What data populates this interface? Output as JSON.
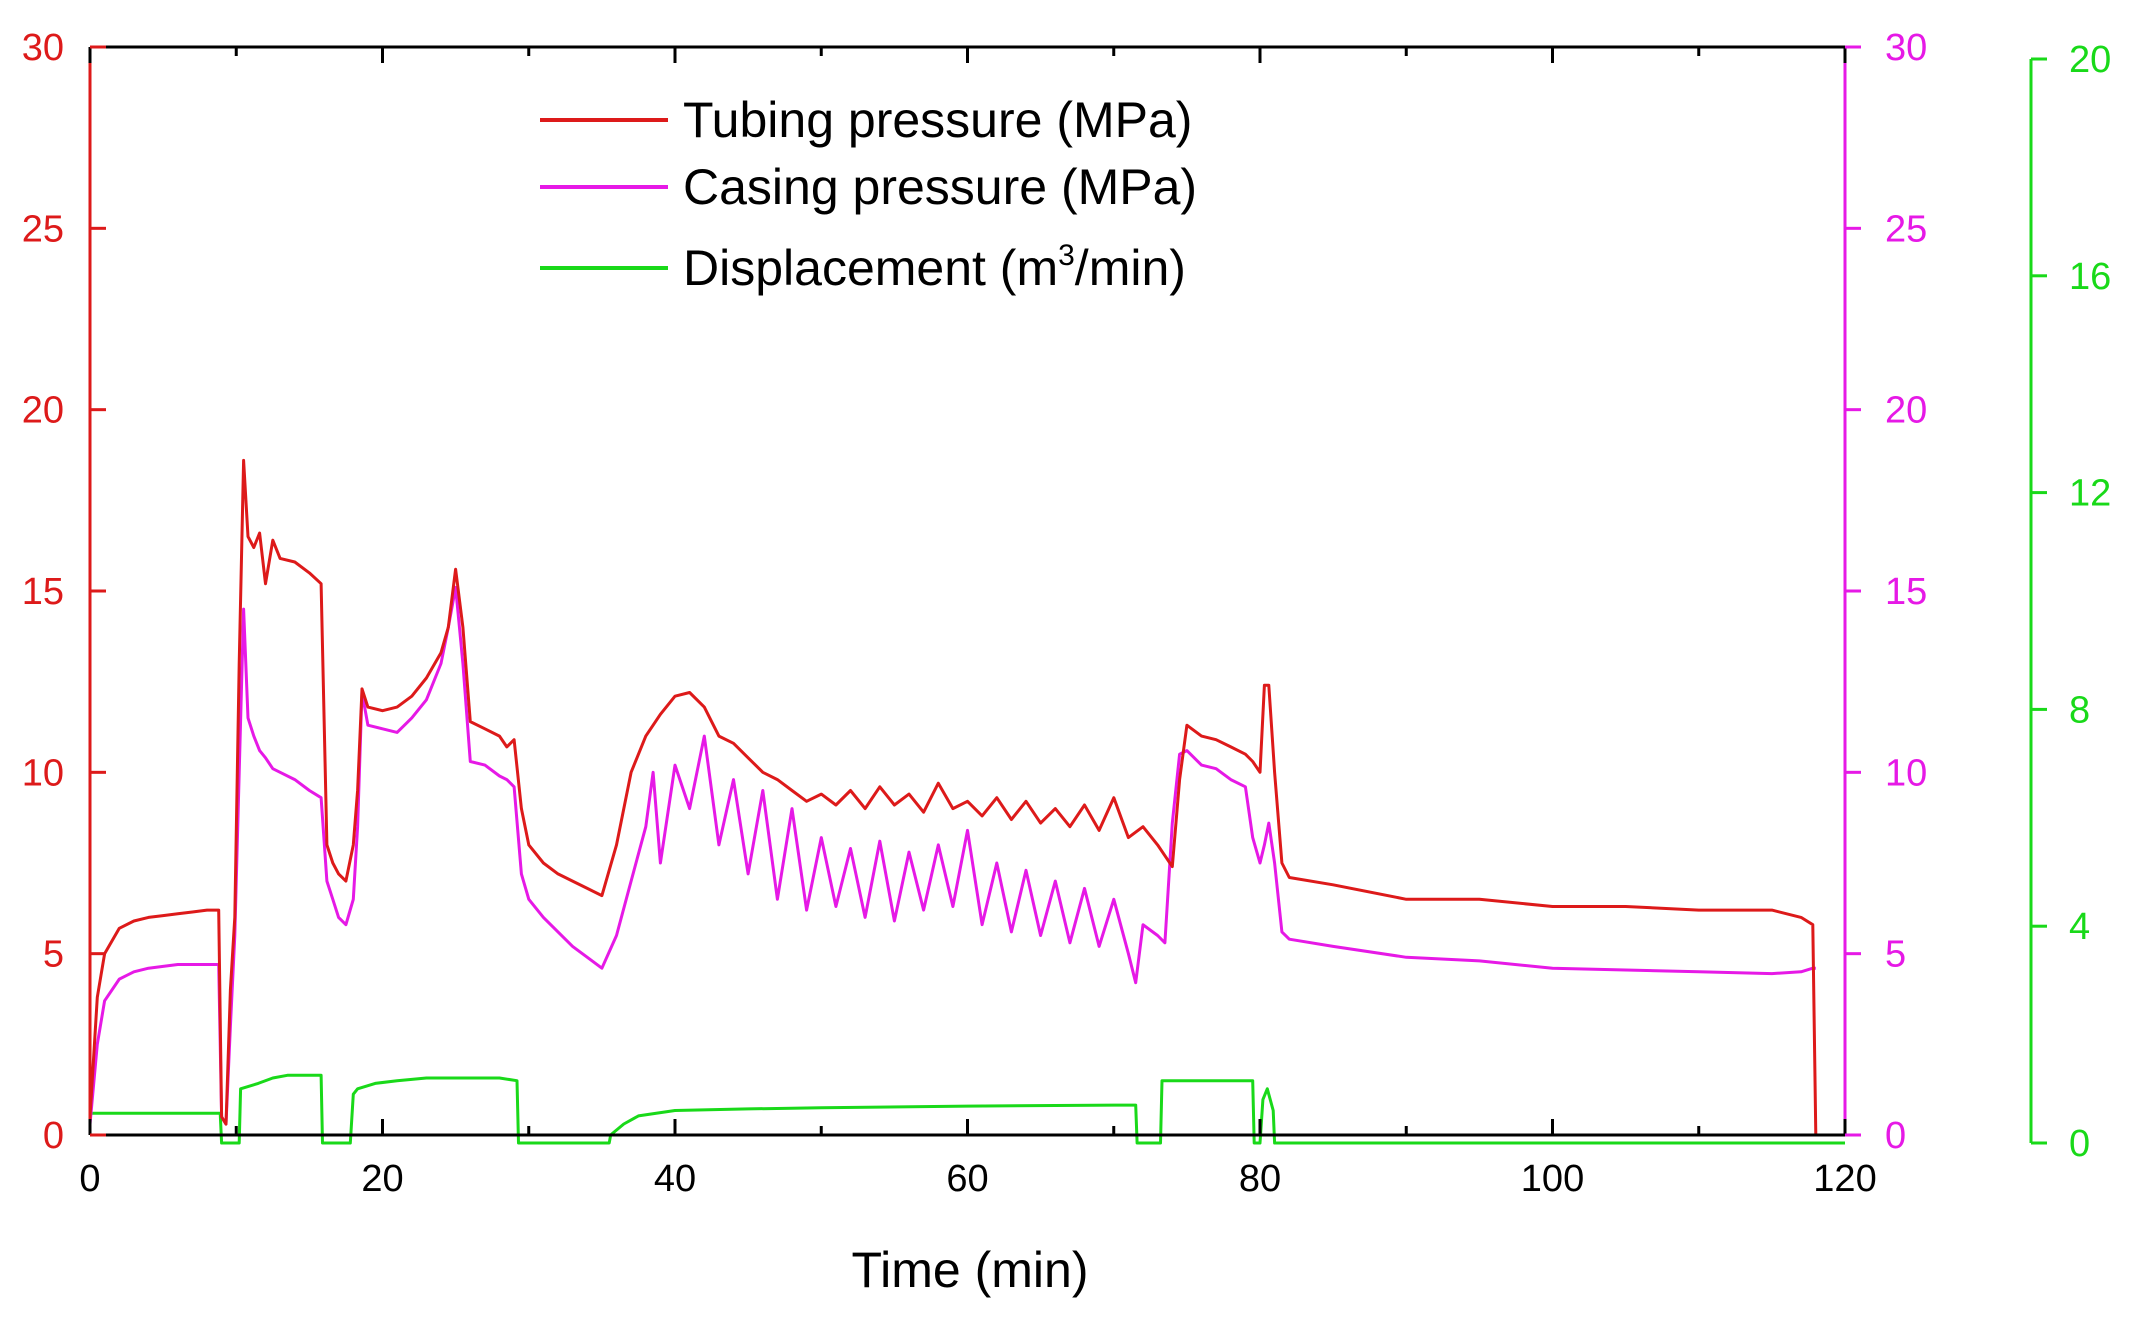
{
  "chart_data": {
    "type": "line",
    "title": "",
    "xlabel": "Time (min)",
    "xlim": [
      0,
      120
    ],
    "x_ticks": [
      0,
      20,
      40,
      60,
      80,
      100,
      120
    ],
    "x_tick_labels": [
      "0",
      "20",
      "40",
      "60",
      "80",
      "100",
      "120"
    ],
    "axes": {
      "left": {
        "color": "#dd1a1a",
        "ylim": [
          0,
          30
        ],
        "ticks": [
          0,
          5,
          10,
          15,
          20,
          25,
          30
        ],
        "tick_labels": [
          "0",
          "5",
          "10",
          "15",
          "20",
          "25",
          "30"
        ]
      },
      "right": {
        "color": "#e619e6",
        "ylim": [
          0,
          30
        ],
        "ticks": [
          0,
          5,
          10,
          15,
          20,
          25,
          30
        ],
        "tick_labels": [
          "0",
          "5",
          "10",
          "15",
          "20",
          "25",
          "30"
        ]
      },
      "far_right": {
        "color": "#19d919",
        "ylim": [
          0,
          20
        ],
        "ticks": [
          0,
          4,
          8,
          12,
          16,
          20
        ],
        "tick_labels": [
          "0",
          "4",
          "8",
          "12",
          "16",
          "20"
        ]
      }
    },
    "legend": {
      "placement": "top-center",
      "entries": [
        {
          "series": "tubing",
          "label": "Tubing pressure (MPa)"
        },
        {
          "series": "casing",
          "label": "Casing pressure (MPa)"
        },
        {
          "series": "displacement",
          "label_main": "Displacement (m",
          "label_sup": "3",
          "label_end": "/min)"
        }
      ]
    },
    "series": [
      {
        "id": "tubing",
        "name": "Tubing pressure (MPa)",
        "axis": "left",
        "color": "#dd1a1a",
        "x": [
          0,
          0.5,
          1,
          2,
          3,
          4,
          5,
          6,
          7,
          8,
          8.8,
          9.0,
          9.3,
          9.6,
          9.9,
          10.2,
          10.5,
          10.8,
          11.2,
          11.6,
          12.0,
          12.5,
          13,
          14,
          15,
          15.8,
          16.2,
          16.6,
          17,
          17.5,
          18,
          18.3,
          18.6,
          19,
          20,
          21,
          22,
          23,
          24,
          24.5,
          25,
          25.5,
          26,
          27,
          28,
          28.5,
          29,
          29.5,
          30,
          31,
          32,
          33,
          34,
          35,
          36,
          37,
          38,
          39,
          40,
          41,
          42,
          43,
          44,
          45,
          46,
          47,
          48,
          49,
          50,
          51,
          52,
          53,
          54,
          55,
          56,
          57,
          58,
          59,
          60,
          61,
          62,
          63,
          64,
          65,
          66,
          67,
          68,
          69,
          70,
          71,
          72,
          73,
          73.5,
          74,
          74.5,
          75,
          76,
          77,
          78,
          79,
          79.5,
          80,
          80.3,
          80.6,
          81,
          81.5,
          82,
          85,
          90,
          95,
          100,
          105,
          110,
          115,
          117,
          117.8,
          118
        ],
        "y": [
          0.5,
          3.8,
          5.0,
          5.7,
          5.9,
          6.0,
          6.05,
          6.1,
          6.15,
          6.2,
          6.2,
          0.5,
          0.3,
          4.0,
          6.0,
          13.0,
          18.6,
          16.5,
          16.2,
          16.6,
          15.2,
          16.4,
          15.9,
          15.8,
          15.5,
          15.2,
          8.0,
          7.5,
          7.2,
          7.0,
          8.0,
          9.5,
          12.3,
          11.8,
          11.7,
          11.8,
          12.1,
          12.6,
          13.3,
          14.0,
          15.6,
          14.0,
          11.4,
          11.2,
          11.0,
          10.7,
          10.9,
          9.0,
          8.0,
          7.5,
          7.2,
          7.0,
          6.8,
          6.6,
          8.0,
          10.0,
          11.0,
          11.6,
          12.1,
          12.2,
          11.8,
          11.0,
          10.8,
          10.4,
          10.0,
          9.8,
          9.5,
          9.2,
          9.4,
          9.1,
          9.5,
          9.0,
          9.6,
          9.1,
          9.4,
          8.9,
          9.7,
          9.0,
          9.2,
          8.8,
          9.3,
          8.7,
          9.2,
          8.6,
          9.0,
          8.5,
          9.1,
          8.4,
          9.3,
          8.2,
          8.5,
          8.0,
          7.7,
          7.4,
          9.8,
          11.3,
          11.0,
          10.9,
          10.7,
          10.5,
          10.3,
          10.0,
          12.4,
          12.4,
          10.0,
          7.5,
          7.1,
          6.9,
          6.5,
          6.5,
          6.3,
          6.3,
          6.2,
          6.2,
          6.0,
          5.8,
          0
        ]
      },
      {
        "id": "casing",
        "name": "Casing pressure (MPa)",
        "axis": "right",
        "color": "#e619e6",
        "x": [
          0,
          0.5,
          1,
          2,
          3,
          4,
          5,
          6,
          7,
          8,
          8.8,
          9.0,
          9.3,
          9.6,
          9.9,
          10.2,
          10.5,
          10.8,
          11.2,
          11.6,
          12.0,
          12.5,
          13,
          14,
          15,
          15.8,
          16.2,
          16.6,
          17,
          17.5,
          18,
          18.3,
          18.6,
          19,
          20,
          21,
          22,
          23,
          24,
          24.5,
          25,
          25.5,
          26,
          27,
          28,
          28.5,
          29,
          29.5,
          30,
          31,
          32,
          33,
          34,
          35,
          36,
          37,
          38,
          38.5,
          39,
          40,
          41,
          42,
          43,
          44,
          45,
          46,
          47,
          48,
          49,
          50,
          51,
          52,
          53,
          54,
          55,
          56,
          57,
          58,
          59,
          60,
          61,
          62,
          63,
          64,
          65,
          66,
          67,
          68,
          69,
          70,
          71,
          71.5,
          72,
          73,
          73.5,
          74,
          74.5,
          75,
          76,
          77,
          78,
          79,
          79.5,
          80,
          80.3,
          80.6,
          81,
          81.5,
          82,
          85,
          90,
          95,
          100,
          105,
          110,
          115,
          117,
          117.8,
          118
        ],
        "y": [
          0.3,
          2.5,
          3.7,
          4.3,
          4.5,
          4.6,
          4.65,
          4.7,
          4.7,
          4.7,
          4.7,
          0.5,
          0.3,
          3.0,
          5.5,
          10.0,
          14.5,
          11.5,
          11.0,
          10.6,
          10.4,
          10.1,
          10.0,
          9.8,
          9.5,
          9.3,
          7.0,
          6.5,
          6.0,
          5.8,
          6.5,
          8.5,
          12.2,
          11.3,
          11.2,
          11.1,
          11.5,
          12.0,
          13.0,
          14.0,
          15.1,
          13.0,
          10.3,
          10.2,
          9.9,
          9.8,
          9.6,
          7.2,
          6.5,
          6.0,
          5.6,
          5.2,
          4.9,
          4.6,
          5.5,
          7.0,
          8.5,
          10.0,
          7.5,
          10.2,
          9.0,
          11.0,
          8.0,
          9.8,
          7.2,
          9.5,
          6.5,
          9.0,
          6.2,
          8.2,
          6.3,
          7.9,
          6.0,
          8.1,
          5.9,
          7.8,
          6.2,
          8.0,
          6.3,
          8.4,
          5.8,
          7.5,
          5.6,
          7.3,
          5.5,
          7.0,
          5.3,
          6.8,
          5.2,
          6.5,
          5.0,
          4.2,
          5.8,
          5.5,
          5.3,
          8.6,
          10.5,
          10.6,
          10.2,
          10.1,
          9.8,
          9.6,
          8.2,
          7.5,
          8.0,
          8.6,
          7.5,
          5.6,
          5.4,
          5.2,
          4.9,
          4.8,
          4.6,
          4.55,
          4.5,
          4.45,
          4.5,
          4.6,
          4.6
        ]
      },
      {
        "id": "displacement",
        "name": "Displacement (m3/min)",
        "axis": "far_right",
        "color": "#19d919",
        "x": [
          0,
          0.2,
          8.9,
          9.0,
          10.2,
          10.3,
          11.5,
          12.5,
          13.5,
          15.8,
          15.9,
          17.8,
          18.0,
          18.3,
          19.5,
          21,
          23,
          28,
          29.2,
          29.3,
          35.5,
          35.6,
          36.5,
          37.5,
          40,
          45,
          50,
          60,
          70,
          71.5,
          71.6,
          73.2,
          73.3,
          79.5,
          79.6,
          80.0,
          80.2,
          80.5,
          80.9,
          81.0,
          120
        ],
        "y": [
          0.55,
          0.55,
          0.55,
          0,
          0,
          1.0,
          1.1,
          1.2,
          1.25,
          1.25,
          0,
          0,
          0.9,
          1.0,
          1.1,
          1.15,
          1.2,
          1.2,
          1.15,
          0,
          0,
          0.15,
          0.35,
          0.5,
          0.6,
          0.63,
          0.65,
          0.68,
          0.7,
          0.7,
          0,
          0,
          1.15,
          1.15,
          0,
          0,
          0.8,
          1.0,
          0.6,
          0,
          0
        ]
      }
    ]
  }
}
